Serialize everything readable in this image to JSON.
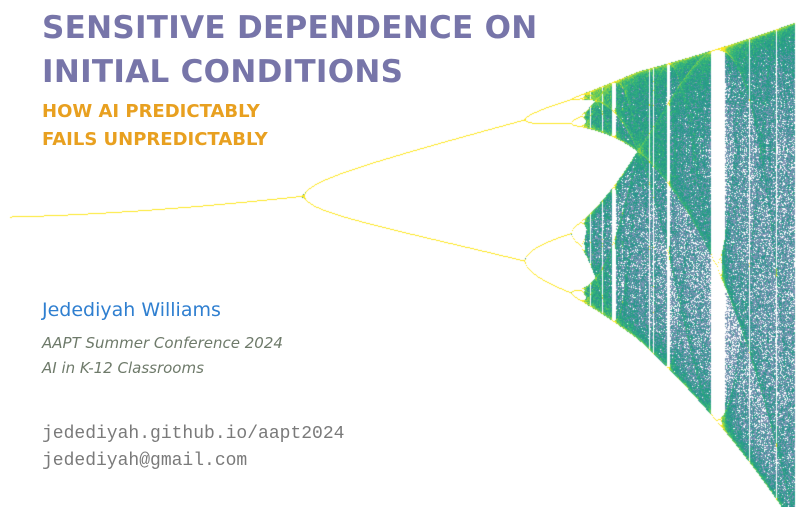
{
  "slide": {
    "title_lines": [
      "SENSITIVE DEPENDENCE ON",
      "INITIAL CONDITIONS"
    ],
    "subtitle_lines": [
      "HOW AI PREDICTABLY",
      "FAILS UNPREDICTABLY"
    ],
    "author": "Jedediyah Williams",
    "conference_lines": [
      "AAPT Summer Conference 2024",
      "AI in K-12 Classrooms"
    ],
    "contact_lines": [
      "jedediyah.github.io/aapt2024",
      "jedediyah@gmail.com"
    ]
  },
  "figure": {
    "kind": "logistic-map bifurcation diagram",
    "colors": {
      "stem": "#5fd0b0",
      "dark": "#3b1a5c",
      "deep": "#2d5f8a",
      "teal": "#1f9a8a",
      "green": "#35b779",
      "lime": "#b5de2b",
      "yellow": "#fde725"
    }
  }
}
